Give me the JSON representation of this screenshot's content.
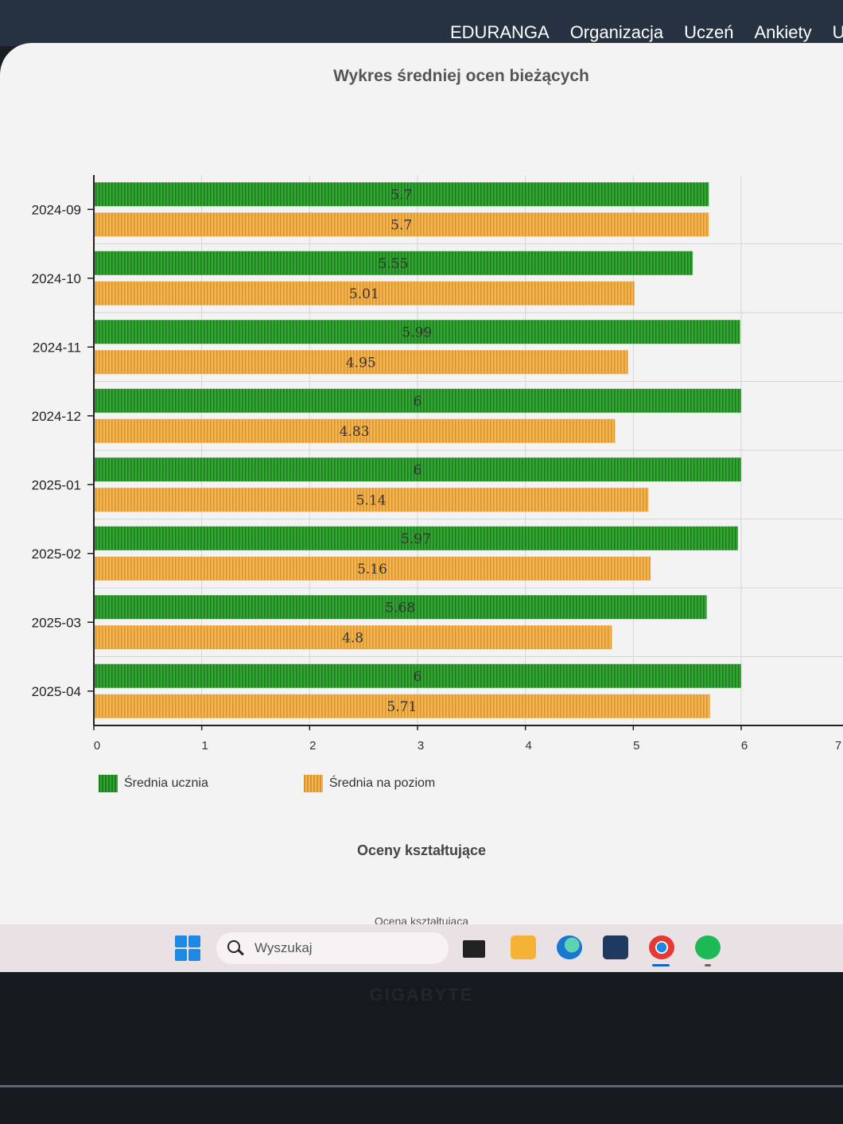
{
  "nav": {
    "items": [
      "EDURANGA",
      "Organizacja",
      "Uczeń",
      "Ankiety",
      "Us"
    ]
  },
  "chart_data": {
    "type": "bar",
    "orientation": "horizontal",
    "title": "Wykres średniej ocen bieżących",
    "categories": [
      "2024-09",
      "2024-10",
      "2024-11",
      "2024-12",
      "2025-01",
      "2025-02",
      "2025-03",
      "2025-04"
    ],
    "series": [
      {
        "name": "Średnia ucznia",
        "values": [
          5.7,
          5.55,
          5.99,
          6,
          6,
          5.97,
          5.68,
          6
        ],
        "labels": [
          "5.7",
          "5.55",
          "5.99",
          "6",
          "6",
          "5.97",
          "5.68",
          "6"
        ],
        "color": "#2ea82e"
      },
      {
        "name": "Średnia na poziom",
        "values": [
          5.7,
          5.01,
          4.95,
          4.83,
          5.14,
          5.16,
          4.8,
          5.71
        ],
        "labels": [
          "5.7",
          "5.01",
          "4.95",
          "4.83",
          "5.14",
          "5.16",
          "4.8",
          "5.71"
        ],
        "color": "#f0b04a"
      }
    ],
    "x_ticks": [
      "0",
      "1",
      "2",
      "3",
      "4",
      "5",
      "6",
      "7"
    ],
    "xlim": [
      0,
      7
    ],
    "grid": true,
    "legend_position": "bottom-left"
  },
  "sections": {
    "formative_title": "Oceny kształtujące",
    "formative_sub": "Ocena kształtująca"
  },
  "taskbar": {
    "search_placeholder": "Wyszukaj"
  },
  "bezel": {
    "brand": "GIGABYTE"
  }
}
